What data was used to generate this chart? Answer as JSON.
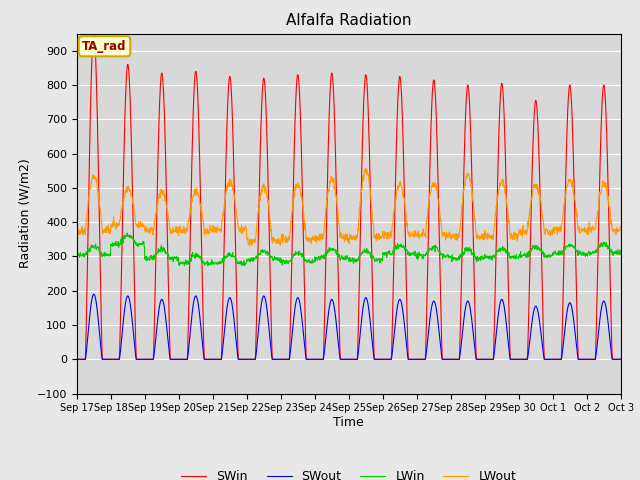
{
  "title": "Alfalfa Radiation",
  "xlabel": "Time",
  "ylabel": "Radiation (W/m2)",
  "ylim": [
    -100,
    950
  ],
  "yticks": [
    -100,
    0,
    100,
    200,
    300,
    400,
    500,
    600,
    700,
    800,
    900
  ],
  "n_days": 16,
  "colors": {
    "SWin": "#ff0000",
    "SWout": "#0000ff",
    "LWin": "#00cc00",
    "LWout": "#ff9900"
  },
  "annotation_label": "TA_rad",
  "annotation_color": "#990000",
  "annotation_border": "#ccaa00",
  "annotation_bg": "#ffffcc",
  "background_color": "#d8d8d8",
  "figure_bg": "#e8e8e8",
  "SWin_peaks": [
    950,
    860,
    835,
    840,
    825,
    820,
    830,
    835,
    830,
    825,
    815,
    800,
    805,
    755,
    800,
    800
  ],
  "SWout_peaks": [
    190,
    185,
    175,
    185,
    180,
    185,
    180,
    175,
    180,
    175,
    170,
    170,
    175,
    155,
    165,
    170
  ],
  "LWin_base": [
    305,
    335,
    295,
    280,
    280,
    290,
    285,
    295,
    290,
    308,
    302,
    295,
    298,
    302,
    308,
    312
  ],
  "LWout_base": [
    375,
    392,
    375,
    375,
    380,
    345,
    350,
    355,
    355,
    362,
    362,
    357,
    357,
    372,
    377,
    377
  ],
  "LWout_peaks": [
    535,
    500,
    490,
    490,
    515,
    505,
    510,
    525,
    550,
    510,
    515,
    540,
    520,
    510,
    525,
    510
  ]
}
